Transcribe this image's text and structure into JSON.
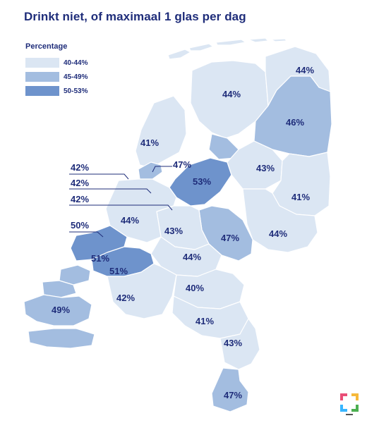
{
  "title": "Drinkt niet, of maximaal 1 glas per dag",
  "colors": {
    "light": "#dbe6f3",
    "medium": "#a3bde0",
    "dark": "#6e93cc",
    "text": "#1f2d7a",
    "border": "#ffffff"
  },
  "legend": {
    "title": "Percentage",
    "items": [
      {
        "label": "40-44%",
        "color": "#dbe6f3"
      },
      {
        "label": "45-49%",
        "color": "#a3bde0"
      },
      {
        "label": "50-53%",
        "color": "#6e93cc"
      }
    ]
  },
  "regions": [
    {
      "label": "44%",
      "category": "40-44%"
    },
    {
      "label": "44%",
      "category": "40-44%"
    },
    {
      "label": "46%",
      "category": "45-49%"
    },
    {
      "label": "41%",
      "category": "40-44%"
    },
    {
      "label": "47%",
      "category": "45-49%"
    },
    {
      "label": "53%",
      "category": "50-53%"
    },
    {
      "label": "43%",
      "category": "40-44%"
    },
    {
      "label": "41%",
      "category": "40-44%"
    },
    {
      "label": "44%",
      "category": "40-44%"
    },
    {
      "label": "43%",
      "category": "40-44%"
    },
    {
      "label": "47%",
      "category": "45-49%"
    },
    {
      "label": "44%",
      "category": "40-44%"
    },
    {
      "label": "44%",
      "category": "40-44%"
    },
    {
      "label": "51%",
      "category": "50-53%"
    },
    {
      "label": "51%",
      "category": "50-53%"
    },
    {
      "label": "40%",
      "category": "40-44%"
    },
    {
      "label": "49%",
      "category": "45-49%"
    },
    {
      "label": "42%",
      "category": "40-44%"
    },
    {
      "label": "41%",
      "category": "40-44%"
    },
    {
      "label": "43%",
      "category": "40-44%"
    },
    {
      "label": "47%",
      "category": "45-49%"
    }
  ],
  "callouts": [
    {
      "label": "42%"
    },
    {
      "label": "42%"
    },
    {
      "label": "42%"
    },
    {
      "label": "50%"
    }
  ],
  "logo_icon": "brand-logo-icon"
}
